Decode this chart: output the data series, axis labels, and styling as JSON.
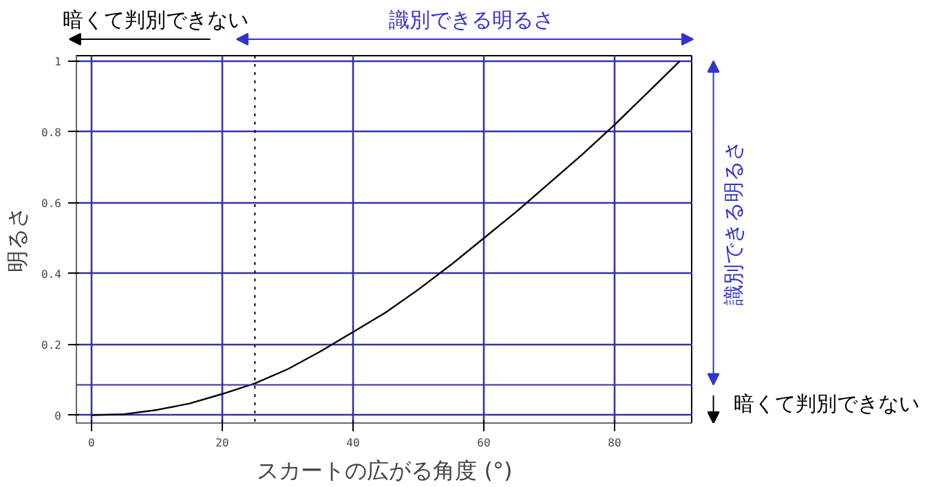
{
  "chart_data": {
    "type": "line",
    "xlabel": "スカートの広がる角度 (°)",
    "ylabel": "明るさ",
    "x": [
      0,
      5,
      10,
      15,
      20,
      25,
      30,
      35,
      40,
      45,
      50,
      55,
      60,
      65,
      70,
      75,
      80,
      85,
      90
    ],
    "series": [
      {
        "color": "#000000",
        "values": [
          0,
          0.003,
          0.015,
          0.033,
          0.06,
          0.09,
          0.13,
          0.18,
          0.235,
          0.29,
          0.355,
          0.425,
          0.5,
          0.575,
          0.655,
          0.735,
          0.82,
          0.91,
          1.0
        ]
      }
    ],
    "xlim": [
      -2.3,
      92
    ],
    "ylim": [
      -0.022,
      1.015
    ],
    "xticks": [
      0,
      20,
      40,
      60,
      80
    ],
    "yticks": [
      0,
      0.2,
      0.4,
      0.6,
      0.8,
      1
    ],
    "grid": true,
    "marker": "none",
    "line_style": "solid",
    "ref_lines": [
      {
        "axis": "x",
        "value": 25,
        "color": "#000000",
        "line_style": "dotted"
      },
      {
        "axis": "y",
        "value": 0.086,
        "color": "#3333aa",
        "line_style": "solid"
      }
    ],
    "annotations": [
      "暗くて判別できない",
      "識別できる明るさ",
      "識別できる明るさ",
      "暗くて判別できない"
    ]
  }
}
